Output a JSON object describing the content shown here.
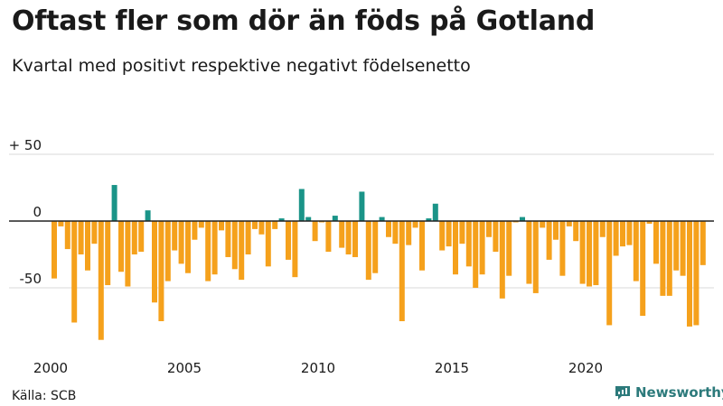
{
  "chart_data": {
    "type": "bar",
    "title": "Oftast fler som dör än föds på Gotland",
    "subtitle": "Kvartal med positivt respektive negativt födelsenetto",
    "xlabel": "",
    "ylabel": "",
    "start_year": 2000,
    "quarters_per_year": 4,
    "x_ticks": [
      "2000",
      "2005",
      "2010",
      "2015",
      "2020"
    ],
    "y_ticks": [
      {
        "value": 50,
        "label": "+ 50"
      },
      {
        "value": 0,
        "label": "0"
      },
      {
        "value": -50,
        "label": "-50"
      }
    ],
    "ylim": [
      -93,
      50
    ],
    "colors": {
      "positive": "#1a9488",
      "negative": "#f5a11c",
      "axis": "#222222",
      "grid": "#d9d9d9"
    },
    "values": [
      -43,
      -4,
      -21,
      -76,
      -25,
      -37,
      -17,
      -89,
      -48,
      27,
      -38,
      -49,
      -25,
      -23,
      8,
      -61,
      -75,
      -45,
      -22,
      -32,
      -39,
      -14,
      -5,
      -45,
      -40,
      -7,
      -27,
      -36,
      -44,
      -25,
      -6,
      -10,
      -34,
      -6,
      2,
      -29,
      -42,
      24,
      3,
      -15,
      -1,
      -23,
      4,
      -20,
      -25,
      -27,
      22,
      -44,
      -39,
      3,
      -12,
      -17,
      -75,
      -18,
      -5,
      -37,
      2,
      13,
      -22,
      -19,
      -40,
      -17,
      -34,
      -50,
      -40,
      -12,
      -23,
      -58,
      -41,
      -1,
      3,
      -47,
      -54,
      -5,
      -29,
      -14,
      -41,
      -4,
      -15,
      -47,
      -49,
      -48,
      -12,
      -78,
      -26,
      -19,
      -18,
      -45,
      -71,
      -2,
      -32,
      -56,
      -56,
      -37,
      -41,
      -79,
      -78,
      -33
    ]
  },
  "source": "Källa: SCB",
  "brand": {
    "name": "Newsworthy",
    "icon": "newsworthy-logo-icon",
    "color": "#2c7a7b"
  }
}
